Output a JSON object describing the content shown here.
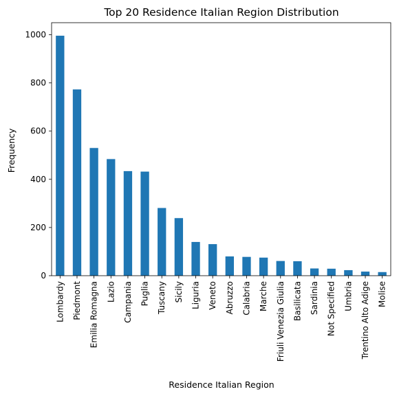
{
  "chart_data": {
    "type": "bar",
    "title": "Top 20 Residence Italian Region Distribution",
    "xlabel": "Residence Italian Region",
    "ylabel": "Frequency",
    "ylim": [
      0,
      1050
    ],
    "yticks": [
      0,
      200,
      400,
      600,
      800,
      1000
    ],
    "grid": false,
    "bar_color": "#1f77b4",
    "categories": [
      "Lombardy",
      "Piedmont",
      "Emilia Romagna",
      "Lazio",
      "Campania",
      "Puglia",
      "Tuscany",
      "Sicily",
      "Liguria",
      "Veneto",
      "Abruzzo",
      "Calabria",
      "Marche",
      "Friuli Venezia Giulia",
      "Basilicata",
      "Sardinia",
      "Not Specified",
      "Umbria",
      "Trentino Alto Adige",
      "Molise"
    ],
    "values": [
      996,
      773,
      530,
      484,
      434,
      432,
      281,
      239,
      140,
      131,
      80,
      78,
      75,
      61,
      60,
      30,
      29,
      23,
      17,
      15
    ]
  }
}
